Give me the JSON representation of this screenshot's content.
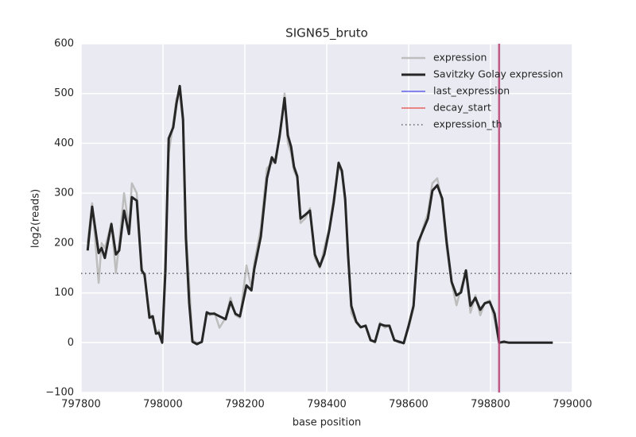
{
  "chart_data": {
    "type": "line",
    "title": "SIGN65_bruto",
    "xlabel": "base position",
    "ylabel": "log2(reads)",
    "x": [
      797816,
      797827,
      797843,
      797850,
      797858,
      797874,
      797885,
      797893,
      797905,
      797917,
      797924,
      797936,
      797948,
      797955,
      797967,
      797975,
      797983,
      797990,
      797998,
      798006,
      798014,
      798025,
      798033,
      798041,
      798049,
      798056,
      798064,
      798072,
      798083,
      798095,
      798107,
      798114,
      798126,
      798138,
      798153,
      798165,
      798177,
      798188,
      798204,
      798216,
      798223,
      798239,
      798254,
      798266,
      798274,
      798285,
      798297,
      798305,
      798313,
      798320,
      798328,
      798336,
      798348,
      798359,
      798371,
      798383,
      798394,
      798406,
      798417,
      798429,
      798437,
      798445,
      798452,
      798460,
      798472,
      798483,
      798495,
      798507,
      798518,
      798530,
      798542,
      798553,
      798565,
      798577,
      798588,
      798600,
      798612,
      798623,
      798635,
      798647,
      798658,
      798670,
      798682,
      798693,
      798705,
      798717,
      798728,
      798740,
      798751,
      798763,
      798775,
      798786,
      798798,
      798810,
      798821,
      798833,
      798845,
      798952
    ],
    "series": [
      {
        "name": "expression",
        "color": "#bdbdbd",
        "width": 2.5,
        "values": [
          200,
          280,
          120,
          200,
          190,
          240,
          140,
          200,
          300,
          230,
          320,
          300,
          150,
          130,
          60,
          45,
          20,
          25,
          5,
          180,
          380,
          440,
          490,
          500,
          440,
          230,
          120,
          5,
          0,
          0,
          60,
          55,
          60,
          30,
          50,
          90,
          55,
          50,
          155,
          110,
          160,
          230,
          350,
          360,
          370,
          410,
          500,
          400,
          380,
          345,
          330,
          240,
          250,
          270,
          170,
          150,
          190,
          230,
          290,
          355,
          340,
          280,
          190,
          60,
          40,
          30,
          35,
          5,
          0,
          40,
          30,
          35,
          5,
          0,
          0,
          30,
          70,
          190,
          230,
          260,
          320,
          330,
          280,
          190,
          120,
          75,
          110,
          140,
          60,
          95,
          55,
          80,
          85,
          45,
          0,
          0,
          0,
          0
        ]
      },
      {
        "name": "Savitzky Golay expression",
        "color": "#262626",
        "width": 3,
        "values": [
          185,
          273,
          180,
          190,
          170,
          238,
          177,
          185,
          265,
          218,
          292,
          285,
          145,
          137,
          50,
          53,
          18,
          20,
          0,
          145,
          410,
          432,
          480,
          515,
          448,
          210,
          80,
          2,
          -3,
          2,
          61,
          58,
          58,
          53,
          47,
          82,
          58,
          53,
          115,
          105,
          148,
          213,
          330,
          372,
          361,
          416,
          491,
          416,
          393,
          353,
          334,
          249,
          257,
          265,
          177,
          153,
          177,
          225,
          281,
          361,
          345,
          289,
          177,
          74,
          42,
          31,
          34,
          5,
          2,
          37,
          34,
          34,
          5,
          2,
          -1,
          34,
          74,
          201,
          225,
          249,
          305,
          316,
          289,
          201,
          122,
          95,
          101,
          145,
          74,
          90,
          66,
          79,
          82,
          58,
          0,
          2,
          0,
          0
        ]
      }
    ],
    "markers": [
      {
        "name": "last_expression",
        "color": "#4040e8",
        "x": 798821
      },
      {
        "name": "decay_start",
        "color": "#e84040",
        "x": 798821
      }
    ],
    "threshold": {
      "name": "expression_th",
      "color": "#444444",
      "value": 139
    },
    "xlim": [
      797800,
      799000
    ],
    "xticks": [
      797800,
      798000,
      798200,
      798400,
      798600,
      798800,
      799000
    ],
    "ylim": [
      -100,
      600
    ],
    "yticks": [
      {
        "value": -100,
        "label": "−100"
      },
      0,
      100,
      200,
      300,
      400,
      500,
      600
    ],
    "grid": true,
    "legend": "upper right"
  }
}
